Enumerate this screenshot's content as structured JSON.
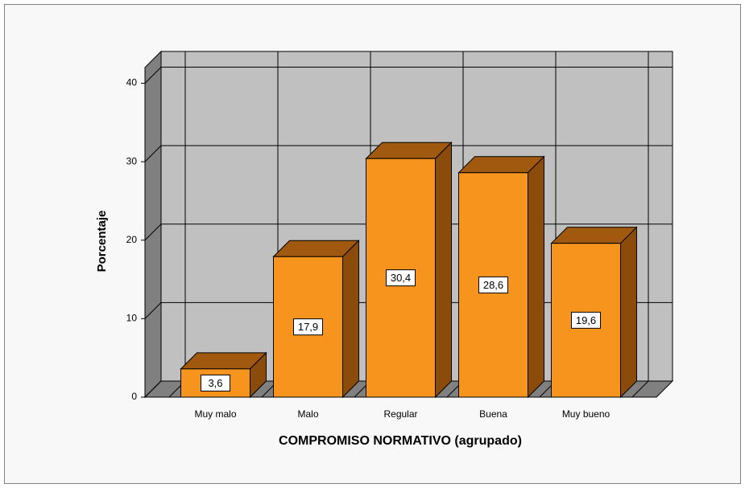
{
  "chart_data": {
    "type": "bar",
    "categories": [
      "Muy malo",
      "Malo",
      "Regular",
      "Buena",
      "Muy bueno"
    ],
    "values": [
      3.6,
      17.9,
      30.4,
      28.6,
      19.6
    ],
    "value_labels": [
      "3,6",
      "17,9",
      "30,4",
      "28,6",
      "19,6"
    ],
    "color": "#f7941e",
    "xlabel": "COMPROMISO NORMATIVO (agrupado)",
    "ylabel": "Porcentaje",
    "ylim": [
      0,
      42
    ],
    "yticks": [
      0,
      10,
      20,
      30,
      40
    ],
    "grid": true
  }
}
